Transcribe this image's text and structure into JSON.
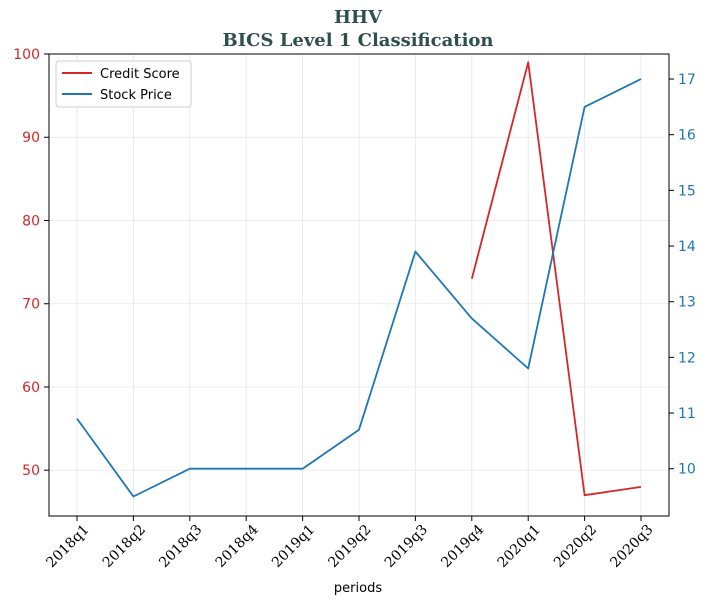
{
  "chart_data": {
    "type": "line",
    "title": "HHV",
    "subtitle": "BICS Level 1 Classification",
    "xlabel": "periods",
    "categories": [
      "2018q1",
      "2018q2",
      "2018q3",
      "2018q4",
      "2019q1",
      "2019q2",
      "2019q3",
      "2019q4",
      "2020q1",
      "2020q2",
      "2020q3"
    ],
    "series": [
      {
        "name": "Credit Score",
        "axis": "left",
        "color": "#d62728",
        "values": [
          null,
          null,
          null,
          null,
          null,
          null,
          null,
          73,
          99,
          47,
          48
        ]
      },
      {
        "name": "Stock Price",
        "axis": "right",
        "color": "#1f77b4",
        "values": [
          10.9,
          9.5,
          10.0,
          10.0,
          10.0,
          10.7,
          13.9,
          12.7,
          11.8,
          16.5,
          17.0
        ]
      }
    ],
    "ylim_left": [
      44.5,
      100
    ],
    "yticks_left": [
      50,
      60,
      70,
      80,
      90,
      100
    ],
    "ylim_right": [
      9.15,
      17.45
    ],
    "yticks_right": [
      10,
      11,
      12,
      13,
      14,
      15,
      16,
      17
    ],
    "legend_position": "upper-left",
    "grid": true
  }
}
